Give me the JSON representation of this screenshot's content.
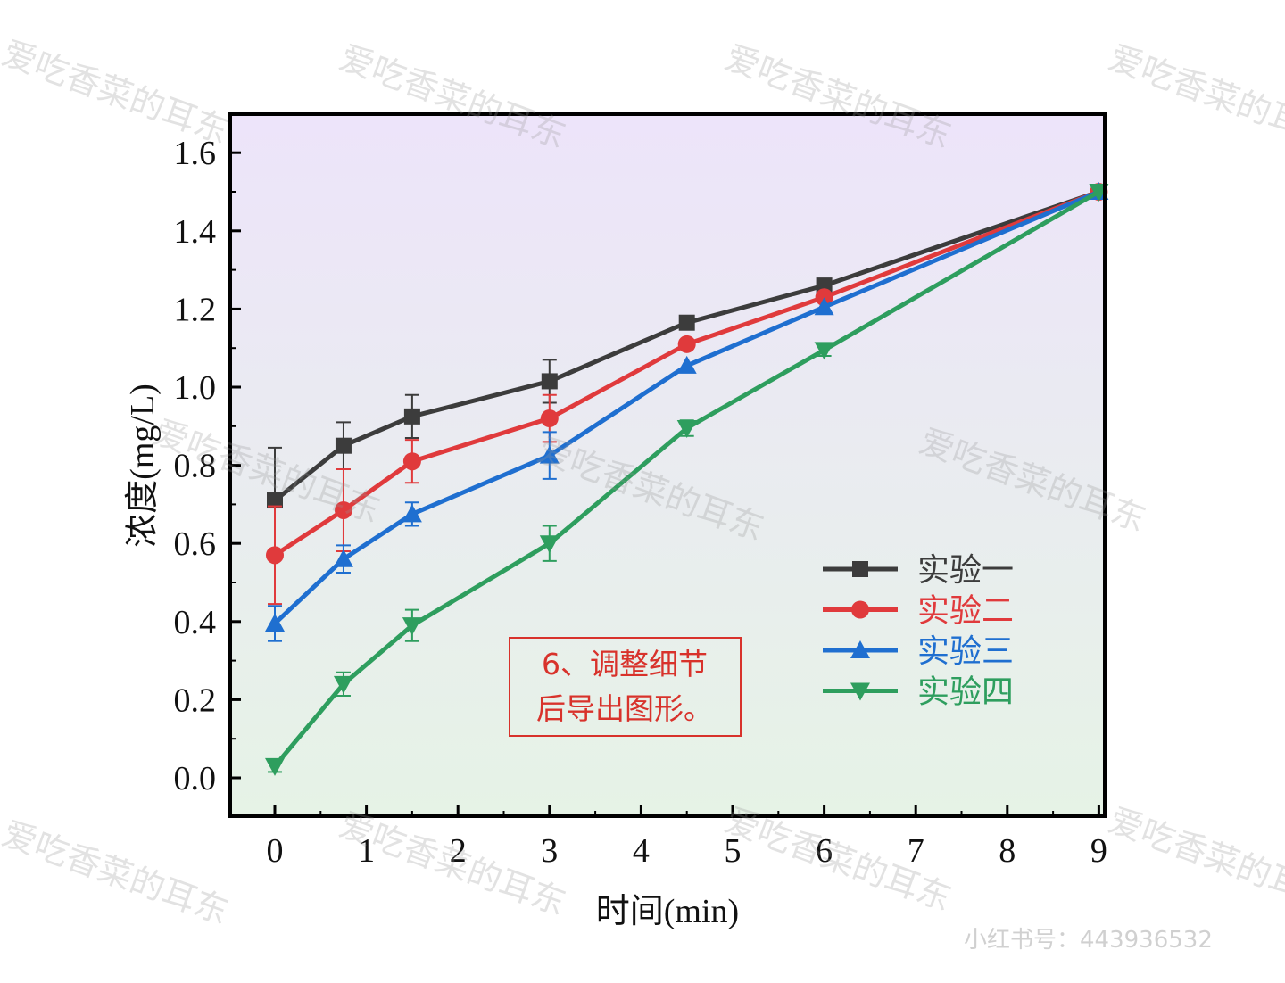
{
  "chart_data": {
    "type": "line",
    "xlabel": "时间(min)",
    "ylabel": "浓度(mg/L)",
    "xlim": [
      -0.5,
      9.1
    ],
    "ylim": [
      -0.1,
      1.7
    ],
    "x_ticks": [
      0,
      1,
      2,
      3,
      4,
      5,
      6,
      7,
      8,
      9
    ],
    "y_ticks": [
      0.0,
      0.2,
      0.4,
      0.6,
      0.8,
      1.0,
      1.2,
      1.4,
      1.6
    ],
    "y_tick_labels": [
      "0.0",
      "0.2",
      "0.4",
      "0.6",
      "0.8",
      "1.0",
      "1.2",
      "1.4",
      "1.6"
    ],
    "grid": false,
    "legend_position": "right",
    "background_gradient": [
      "#ede4fa",
      "#e6f3e6"
    ],
    "x": [
      0,
      0.75,
      1.5,
      3,
      4.5,
      6,
      9
    ],
    "series": [
      {
        "name": "实验一",
        "color": "#3c3c3c",
        "marker": "square",
        "values": [
          0.71,
          0.85,
          0.925,
          1.015,
          1.165,
          1.26,
          1.5
        ],
        "errors": [
          0.135,
          0.06,
          0.055,
          0.055,
          0,
          0,
          0
        ]
      },
      {
        "name": "实验二",
        "color": "#e03a3c",
        "marker": "circle",
        "values": [
          0.57,
          0.685,
          0.81,
          0.92,
          1.11,
          1.23,
          1.5
        ],
        "errors": [
          0.125,
          0.105,
          0.055,
          0.06,
          0,
          0,
          0
        ]
      },
      {
        "name": "实验三",
        "color": "#1f6fd0",
        "marker": "triangle-up",
        "values": [
          0.395,
          0.56,
          0.675,
          0.825,
          1.055,
          1.205,
          1.5
        ],
        "errors": [
          0.045,
          0.035,
          0.03,
          0.06,
          0,
          0,
          0
        ]
      },
      {
        "name": "实验四",
        "color": "#2e9e5e",
        "marker": "triangle-down",
        "values": [
          0.03,
          0.24,
          0.39,
          0.6,
          0.895,
          1.095,
          1.5
        ],
        "errors": [
          0.015,
          0.03,
          0.04,
          0.045,
          0.02,
          0.015,
          0
        ]
      }
    ]
  },
  "annotation": {
    "line1": "6、调整细节",
    "line2": "后导出图形。",
    "color": "#d8322b"
  },
  "watermark": {
    "text": "爱吃香菜的耳东",
    "user_id": "小红书号：443936532"
  }
}
